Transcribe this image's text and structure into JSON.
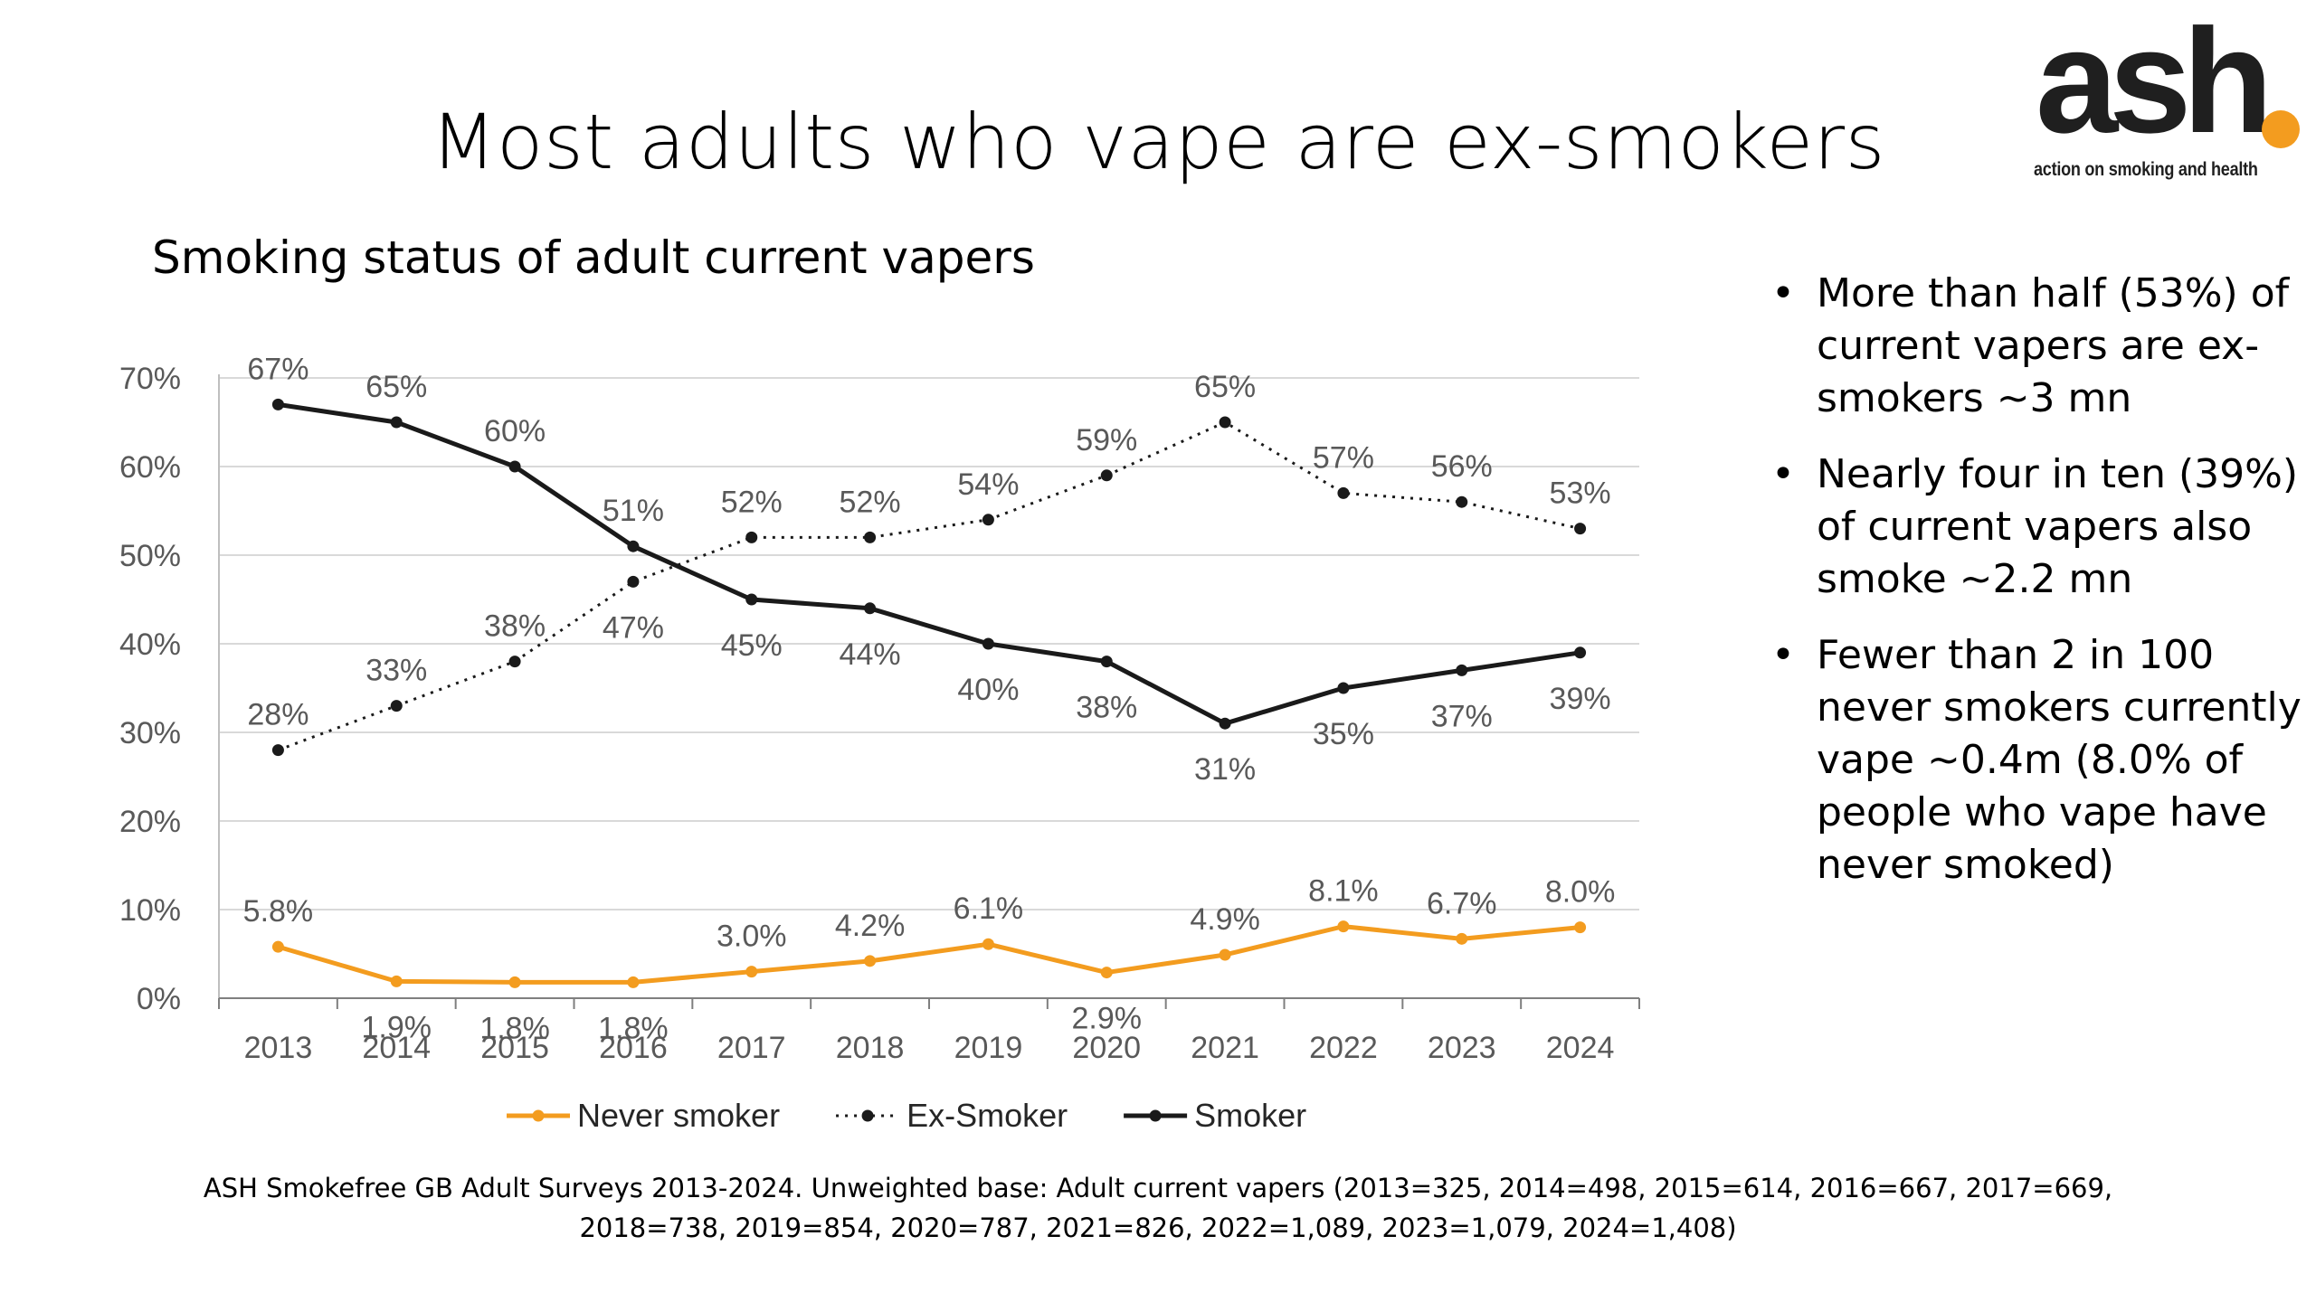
{
  "slide": {
    "title": "Most adults who vape are ex-smokers",
    "logo": {
      "word": "ash",
      "tagline": "action on smoking and health",
      "accent_color": "#f39c1f"
    },
    "bullets": [
      "More than half (53%) of current vapers are ex-smokers ~3 mn",
      "Nearly four in ten (39%) of current vapers also smoke ~2.2 mn",
      "Fewer than 2 in 100 never smokers currently vape ~0.4m (8.0% of people who vape have never smoked)"
    ],
    "source_lines": [
      "ASH Smokefree GB Adult Surveys 2013-2024. Unweighted base: Adult current vapers (2013=325, 2014=498, 2015=614, 2016=667, 2017=669,",
      "2018=738, 2019=854, 2020=787, 2021=826, 2022=1,089, 2023=1,079, 2024=1,408)"
    ]
  },
  "chart_data": {
    "type": "line",
    "title": "Smoking status of adult current vapers",
    "xlabel": "",
    "ylabel": "",
    "x": [
      "2013",
      "2014",
      "2015",
      "2016",
      "2017",
      "2018",
      "2019",
      "2020",
      "2021",
      "2022",
      "2023",
      "2024"
    ],
    "ylim": [
      0,
      70
    ],
    "yticks": [
      0,
      10,
      20,
      30,
      40,
      50,
      60,
      70
    ],
    "ytick_labels": [
      "0%",
      "10%",
      "20%",
      "30%",
      "40%",
      "50%",
      "60%",
      "70%"
    ],
    "grid": true,
    "legend_position": "bottom",
    "series": [
      {
        "name": "Never smoker",
        "color": "#f39c1f",
        "line_style": "solid",
        "values": [
          5.8,
          1.9,
          1.8,
          1.8,
          3.0,
          4.2,
          6.1,
          2.9,
          4.9,
          8.1,
          6.7,
          8.0
        ],
        "labels": [
          "5.8%",
          "1.9%",
          "1.8%",
          "1.8%",
          "3.0%",
          "4.2%",
          "6.1%",
          "2.9%",
          "4.9%",
          "8.1%",
          "6.7%",
          "8.0%"
        ],
        "label_side": [
          "above",
          "below",
          "below",
          "below",
          "above",
          "above",
          "above",
          "below",
          "above",
          "above",
          "above",
          "above"
        ]
      },
      {
        "name": "Ex-Smoker",
        "color": "#1a1a1a",
        "line_style": "dotted",
        "values": [
          28,
          33,
          38,
          47,
          52,
          52,
          54,
          59,
          65,
          57,
          56,
          53
        ],
        "labels": [
          "28%",
          "33%",
          "38%",
          "47%",
          "52%",
          "52%",
          "54%",
          "59%",
          "65%",
          "57%",
          "56%",
          "53%"
        ],
        "label_side": [
          "above",
          "above",
          "above",
          "below",
          "above",
          "above",
          "above",
          "above",
          "above",
          "above",
          "above",
          "above"
        ]
      },
      {
        "name": "Smoker",
        "color": "#1a1a1a",
        "line_style": "solid",
        "values": [
          67,
          65,
          60,
          51,
          45,
          44,
          40,
          38,
          31,
          35,
          37,
          39
        ],
        "labels": [
          "67%",
          "65%",
          "60%",
          "51%",
          "45%",
          "44%",
          "40%",
          "38%",
          "31%",
          "35%",
          "37%",
          "39%"
        ],
        "label_side": [
          "above",
          "above",
          "above",
          "above",
          "below",
          "below",
          "below",
          "below",
          "below",
          "below",
          "below",
          "below"
        ]
      }
    ]
  }
}
